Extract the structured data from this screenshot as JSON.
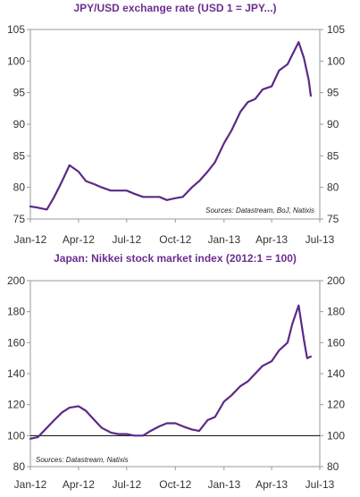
{
  "chart_data": [
    {
      "type": "line",
      "title": "JPY/USD exchange rate (USD 1 = JPY...)",
      "source": "Sources: Datastream, BoJ, Natixis",
      "x_ticks": [
        "Jan-12",
        "Apr-12",
        "Jul-12",
        "Oct-12",
        "Jan-13",
        "Apr-13",
        "Jul-13"
      ],
      "ylim": [
        75,
        105
      ],
      "y_ticks": [
        75,
        80,
        85,
        90,
        95,
        100,
        105
      ],
      "grid": false,
      "colors": {
        "series": "#5b2a86",
        "title": "#6b2f8f"
      },
      "series": [
        {
          "x": [
            "2012-01-01",
            "2012-01-15",
            "2012-02-01",
            "2012-02-15",
            "2012-03-01",
            "2012-03-15",
            "2012-04-01",
            "2012-04-15",
            "2012-05-01",
            "2012-05-15",
            "2012-06-01",
            "2012-06-15",
            "2012-07-01",
            "2012-07-15",
            "2012-08-01",
            "2012-08-15",
            "2012-09-01",
            "2012-09-15",
            "2012-10-01",
            "2012-10-15",
            "2012-11-01",
            "2012-11-15",
            "2012-12-01",
            "2012-12-15",
            "2013-01-01",
            "2013-01-15",
            "2013-02-01",
            "2013-02-15",
            "2013-03-01",
            "2013-03-15",
            "2013-04-01",
            "2013-04-15",
            "2013-05-01",
            "2013-05-10",
            "2013-05-22",
            "2013-06-01",
            "2013-06-10",
            "2013-06-14"
          ],
          "values": [
            77.0,
            76.8,
            76.5,
            78.5,
            81.0,
            83.5,
            82.5,
            81.0,
            80.5,
            80.0,
            79.5,
            79.5,
            79.5,
            79.0,
            78.5,
            78.5,
            78.5,
            78.0,
            78.3,
            78.5,
            80.0,
            81.0,
            82.5,
            84.0,
            87.0,
            89.0,
            92.0,
            93.5,
            94.0,
            95.5,
            96.0,
            98.5,
            99.5,
            101.0,
            103.0,
            100.5,
            97.0,
            94.5
          ]
        }
      ]
    },
    {
      "type": "line",
      "title": "Japan: Nikkei stock market index (2012:1 = 100)",
      "source": "Sources: Datastream, Natixis",
      "x_ticks": [
        "Jan-12",
        "Apr-12",
        "Jul-12",
        "Oct-12",
        "Jan-13",
        "Apr-13",
        "Jul-13"
      ],
      "ylim": [
        80,
        200
      ],
      "y_ticks": [
        80,
        100,
        120,
        140,
        160,
        180,
        200
      ],
      "reference_line": 100,
      "grid": false,
      "colors": {
        "series": "#5b2a86",
        "title": "#6b2f8f",
        "reference_line": "#000000"
      },
      "series": [
        {
          "x": [
            "2012-01-01",
            "2012-01-15",
            "2012-02-01",
            "2012-02-15",
            "2012-03-01",
            "2012-03-15",
            "2012-04-01",
            "2012-04-15",
            "2012-05-01",
            "2012-05-15",
            "2012-06-01",
            "2012-06-15",
            "2012-07-01",
            "2012-07-15",
            "2012-08-01",
            "2012-08-15",
            "2012-09-01",
            "2012-09-15",
            "2012-10-01",
            "2012-10-15",
            "2012-11-01",
            "2012-11-15",
            "2012-12-01",
            "2012-12-15",
            "2013-01-01",
            "2013-01-15",
            "2013-02-01",
            "2013-02-15",
            "2013-03-01",
            "2013-03-15",
            "2013-04-01",
            "2013-04-15",
            "2013-05-01",
            "2013-05-10",
            "2013-05-22",
            "2013-06-01",
            "2013-06-07",
            "2013-06-14"
          ],
          "values": [
            98,
            99,
            105,
            110,
            115,
            118,
            119,
            116,
            110,
            105,
            102,
            101,
            101,
            100,
            100,
            103,
            106,
            108,
            108,
            106,
            104,
            103,
            110,
            112,
            122,
            126,
            132,
            135,
            140,
            145,
            148,
            155,
            160,
            172,
            184,
            162,
            150,
            151
          ]
        }
      ]
    }
  ]
}
